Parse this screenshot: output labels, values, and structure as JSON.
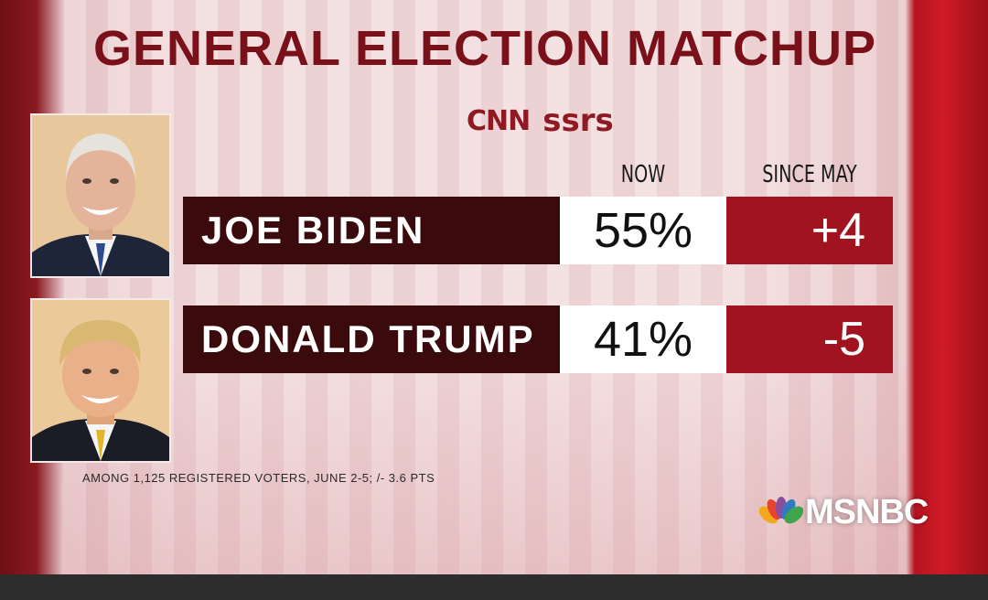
{
  "title": "GENERAL ELECTION MATCHUP",
  "source": {
    "cnn": "CNN",
    "ssrs": "ssrs"
  },
  "network": "MSNBC",
  "colors": {
    "title": "#7a1019",
    "name_bar": "#3a0a0d",
    "change_bar": "#a1131e"
  },
  "chart_data": {
    "type": "table",
    "title": "GENERAL ELECTION MATCHUP",
    "columns": [
      "NOW",
      "SINCE MAY"
    ],
    "rows": [
      {
        "name": "JOE BIDEN",
        "now": "55%",
        "since_may": "+4",
        "now_value": 55,
        "change_value": 4
      },
      {
        "name": "DONALD TRUMP",
        "now": "41%",
        "since_may": "-5",
        "now_value": 41,
        "change_value": -5
      }
    ],
    "footnote": "AMONG 1,125 REGISTERED VOTERS, JUNE 2-5; /- 3.6 PTS"
  }
}
